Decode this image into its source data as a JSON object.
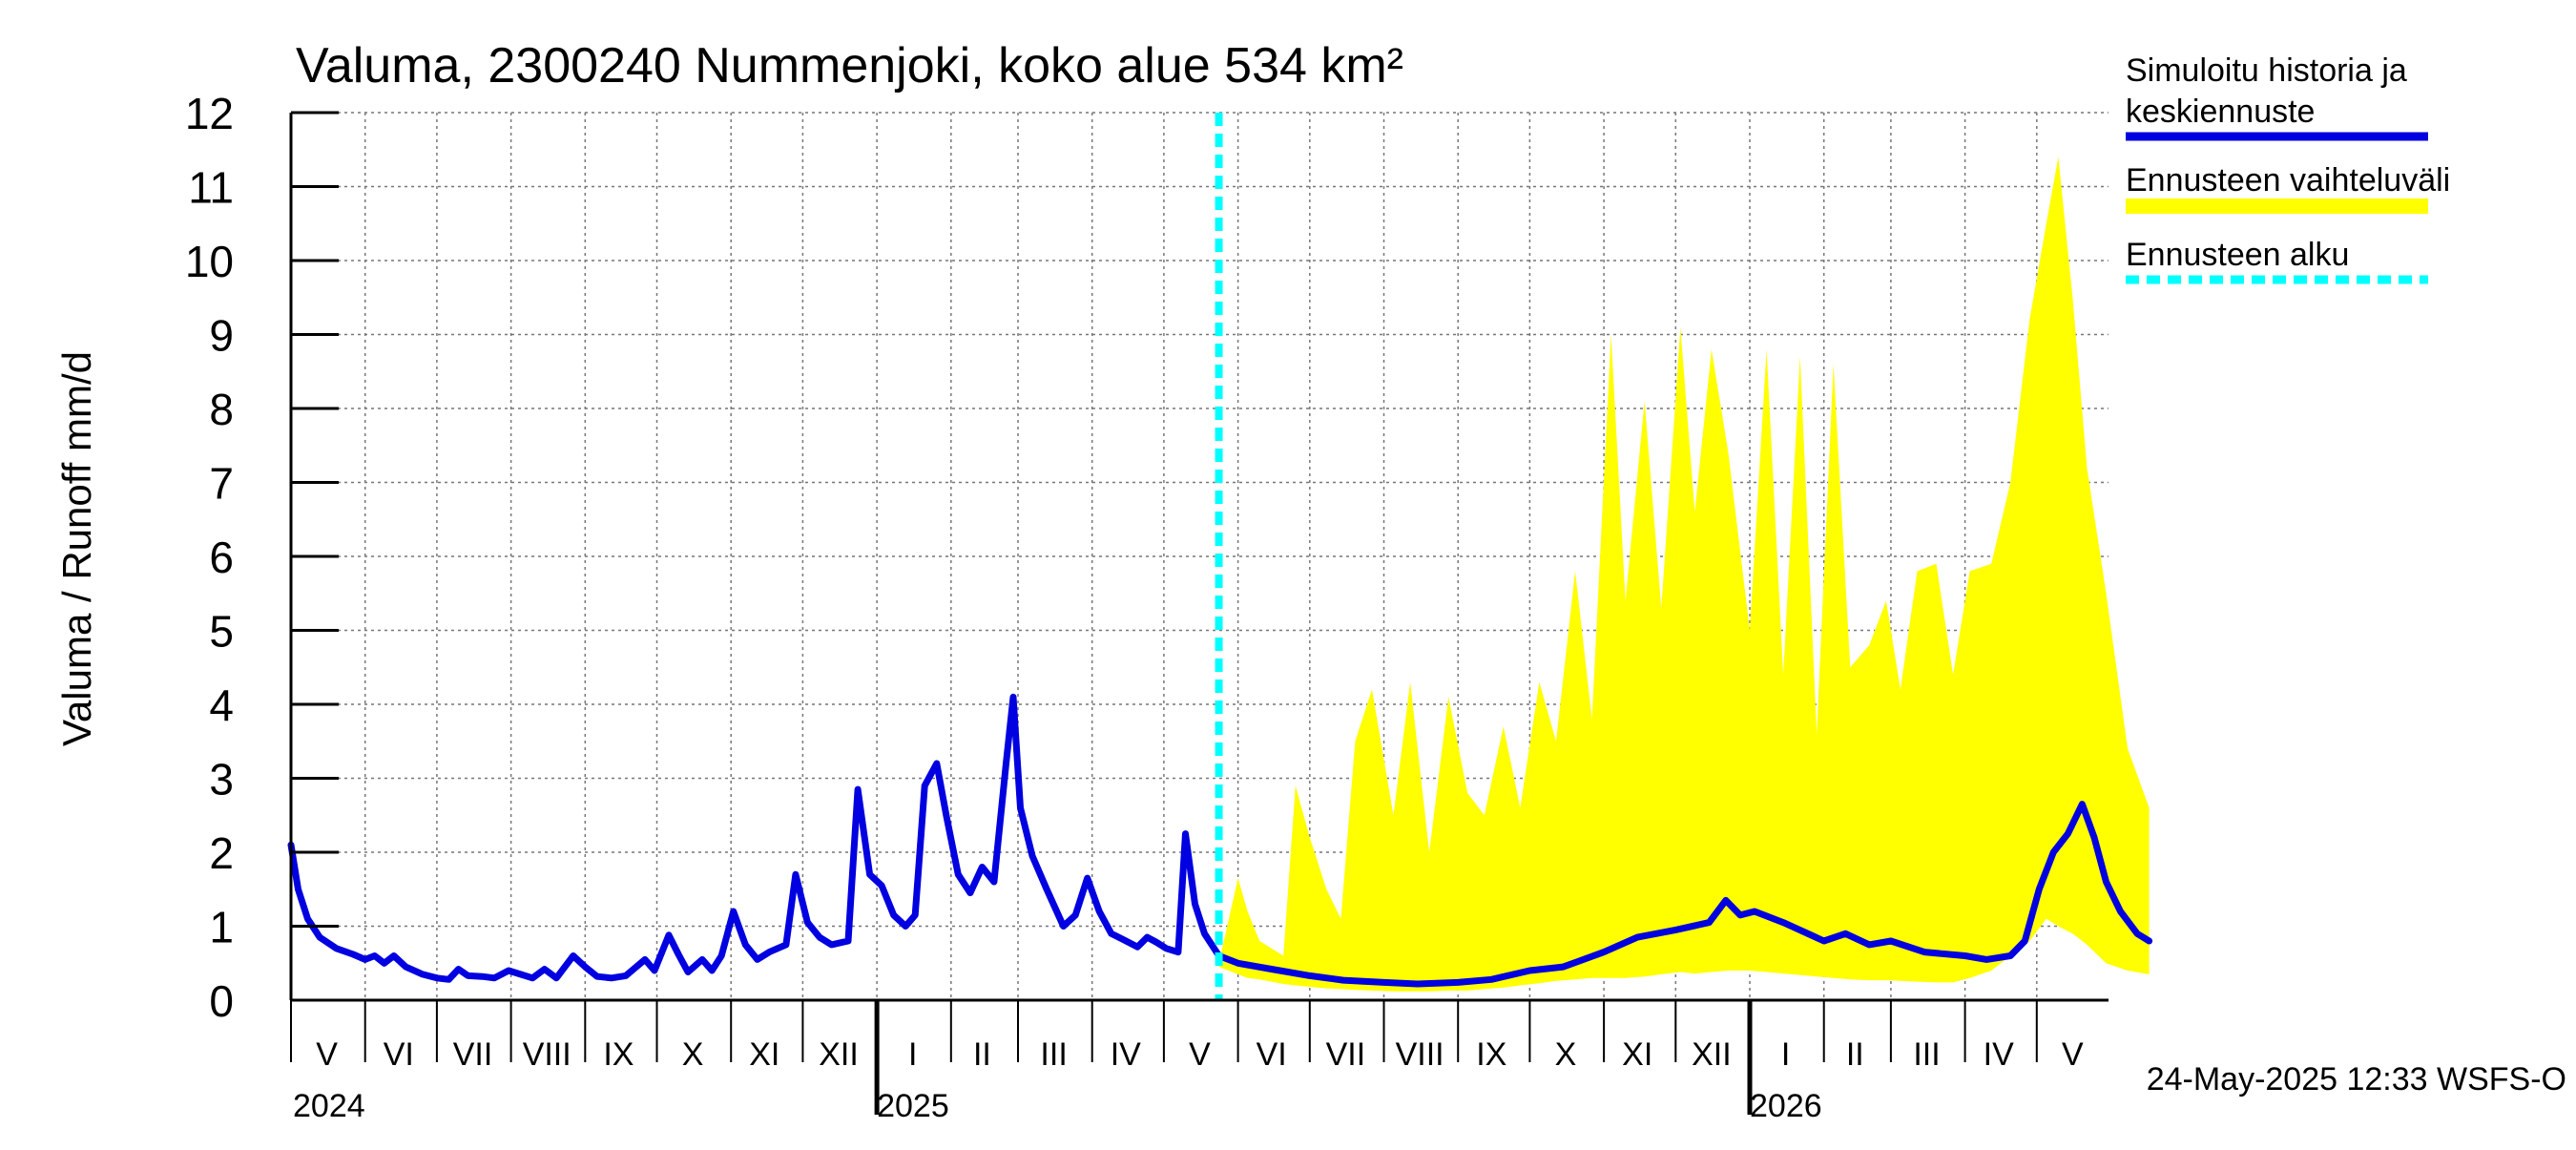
{
  "chart_data": {
    "type": "line",
    "title": "Valuma, 2300240 Nummenjoki, koko alue 534 km²",
    "ylabel": "Valuma / Runoff    mm/d",
    "ylim": [
      0,
      12
    ],
    "yticks": [
      0,
      1,
      2,
      3,
      4,
      5,
      6,
      7,
      8,
      9,
      10,
      11,
      12
    ],
    "xlim": [
      "2024-05-01",
      "2026-05-31"
    ],
    "x_month_labels": [
      {
        "label": "V",
        "date": "2024-05-16"
      },
      {
        "label": "VI",
        "date": "2024-06-15"
      },
      {
        "label": "VII",
        "date": "2024-07-16"
      },
      {
        "label": "VIII",
        "date": "2024-08-16"
      },
      {
        "label": "IX",
        "date": "2024-09-15"
      },
      {
        "label": "X",
        "date": "2024-10-16"
      },
      {
        "label": "XI",
        "date": "2024-11-15"
      },
      {
        "label": "XII",
        "date": "2024-12-16"
      },
      {
        "label": "I",
        "date": "2025-01-16"
      },
      {
        "label": "II",
        "date": "2025-02-14"
      },
      {
        "label": "III",
        "date": "2025-03-16"
      },
      {
        "label": "IV",
        "date": "2025-04-15"
      },
      {
        "label": "V",
        "date": "2025-05-16"
      },
      {
        "label": "VI",
        "date": "2025-06-15"
      },
      {
        "label": "VII",
        "date": "2025-07-16"
      },
      {
        "label": "VIII",
        "date": "2025-08-16"
      },
      {
        "label": "IX",
        "date": "2025-09-15"
      },
      {
        "label": "X",
        "date": "2025-10-16"
      },
      {
        "label": "XI",
        "date": "2025-11-15"
      },
      {
        "label": "XII",
        "date": "2025-12-16"
      },
      {
        "label": "I",
        "date": "2026-01-16"
      },
      {
        "label": "II",
        "date": "2026-02-14"
      },
      {
        "label": "III",
        "date": "2026-03-16"
      },
      {
        "label": "IV",
        "date": "2026-04-15"
      },
      {
        "label": "V",
        "date": "2026-05-16"
      }
    ],
    "x_year_labels": [
      {
        "label": "2024",
        "date": "2024-05-01"
      },
      {
        "label": "2025",
        "date": "2025-01-01"
      },
      {
        "label": "2026",
        "date": "2026-01-01"
      }
    ],
    "forecast_start": "2025-05-24",
    "grid": true,
    "legend_position": "right",
    "legend": [
      {
        "label_line1": "Simuloitu historia ja",
        "label_line2": "keskiennuste",
        "color": "#0000e0",
        "style": "solid-thick"
      },
      {
        "label_line1": "Ennusteen vaihteluväli",
        "label_line2": "",
        "color": "#ffff00",
        "style": "band"
      },
      {
        "label_line1": "Ennusteen alku",
        "label_line2": "",
        "color": "#00ffff",
        "style": "dashed"
      }
    ],
    "series": [
      {
        "name": "Simuloitu historia ja keskiennuste",
        "color": "#0000e0",
        "points": [
          [
            "2024-05-01",
            2.1
          ],
          [
            "2024-05-04",
            1.5
          ],
          [
            "2024-05-08",
            1.1
          ],
          [
            "2024-05-13",
            0.85
          ],
          [
            "2024-05-20",
            0.7
          ],
          [
            "2024-05-27",
            0.62
          ],
          [
            "2024-06-01",
            0.55
          ],
          [
            "2024-06-05",
            0.6
          ],
          [
            "2024-06-09",
            0.5
          ],
          [
            "2024-06-13",
            0.6
          ],
          [
            "2024-06-18",
            0.45
          ],
          [
            "2024-06-25",
            0.35
          ],
          [
            "2024-07-01",
            0.3
          ],
          [
            "2024-07-06",
            0.28
          ],
          [
            "2024-07-10",
            0.42
          ],
          [
            "2024-07-14",
            0.33
          ],
          [
            "2024-07-20",
            0.32
          ],
          [
            "2024-07-25",
            0.3
          ],
          [
            "2024-07-31",
            0.4
          ],
          [
            "2024-08-05",
            0.35
          ],
          [
            "2024-08-10",
            0.3
          ],
          [
            "2024-08-15",
            0.42
          ],
          [
            "2024-08-20",
            0.3
          ],
          [
            "2024-08-27",
            0.6
          ],
          [
            "2024-09-01",
            0.45
          ],
          [
            "2024-09-06",
            0.32
          ],
          [
            "2024-09-12",
            0.3
          ],
          [
            "2024-09-18",
            0.33
          ],
          [
            "2024-09-26",
            0.55
          ],
          [
            "2024-09-30",
            0.4
          ],
          [
            "2024-10-06",
            0.88
          ],
          [
            "2024-10-10",
            0.62
          ],
          [
            "2024-10-14",
            0.38
          ],
          [
            "2024-10-20",
            0.55
          ],
          [
            "2024-10-24",
            0.4
          ],
          [
            "2024-10-28",
            0.6
          ],
          [
            "2024-11-02",
            1.2
          ],
          [
            "2024-11-07",
            0.75
          ],
          [
            "2024-11-12",
            0.55
          ],
          [
            "2024-11-17",
            0.65
          ],
          [
            "2024-11-24",
            0.75
          ],
          [
            "2024-11-28",
            1.7
          ],
          [
            "2024-12-03",
            1.05
          ],
          [
            "2024-12-08",
            0.85
          ],
          [
            "2024-12-13",
            0.75
          ],
          [
            "2024-12-20",
            0.8
          ],
          [
            "2024-12-24",
            2.85
          ],
          [
            "2024-12-29",
            1.7
          ],
          [
            "2025-01-03",
            1.55
          ],
          [
            "2025-01-08",
            1.15
          ],
          [
            "2025-01-13",
            1.0
          ],
          [
            "2025-01-17",
            1.15
          ],
          [
            "2025-01-21",
            2.9
          ],
          [
            "2025-01-26",
            3.2
          ],
          [
            "2025-01-30",
            2.5
          ],
          [
            "2025-02-04",
            1.7
          ],
          [
            "2025-02-09",
            1.45
          ],
          [
            "2025-02-14",
            1.8
          ],
          [
            "2025-02-19",
            1.6
          ],
          [
            "2025-02-24",
            3.2
          ],
          [
            "2025-02-27",
            4.1
          ],
          [
            "2025-03-02",
            2.6
          ],
          [
            "2025-03-07",
            1.95
          ],
          [
            "2025-03-13",
            1.5
          ],
          [
            "2025-03-20",
            1.0
          ],
          [
            "2025-03-25",
            1.15
          ],
          [
            "2025-03-30",
            1.65
          ],
          [
            "2025-04-04",
            1.2
          ],
          [
            "2025-04-09",
            0.9
          ],
          [
            "2025-04-14",
            0.82
          ],
          [
            "2025-04-20",
            0.72
          ],
          [
            "2025-04-24",
            0.85
          ],
          [
            "2025-04-28",
            0.78
          ],
          [
            "2025-05-02",
            0.7
          ],
          [
            "2025-05-07",
            0.65
          ],
          [
            "2025-05-10",
            2.25
          ],
          [
            "2025-05-14",
            1.3
          ],
          [
            "2025-05-18",
            0.9
          ],
          [
            "2025-05-24",
            0.6
          ],
          [
            "2025-06-01",
            0.5
          ],
          [
            "2025-06-15",
            0.42
          ],
          [
            "2025-07-01",
            0.33
          ],
          [
            "2025-07-15",
            0.27
          ],
          [
            "2025-08-01",
            0.24
          ],
          [
            "2025-08-15",
            0.22
          ],
          [
            "2025-09-01",
            0.24
          ],
          [
            "2025-09-15",
            0.28
          ],
          [
            "2025-10-01",
            0.4
          ],
          [
            "2025-10-15",
            0.45
          ],
          [
            "2025-11-01",
            0.65
          ],
          [
            "2025-11-15",
            0.85
          ],
          [
            "2025-12-01",
            0.95
          ],
          [
            "2025-12-15",
            1.05
          ],
          [
            "2025-12-22",
            1.35
          ],
          [
            "2025-12-28",
            1.15
          ],
          [
            "2026-01-03",
            1.2
          ],
          [
            "2026-01-15",
            1.05
          ],
          [
            "2026-02-01",
            0.8
          ],
          [
            "2026-02-10",
            0.9
          ],
          [
            "2026-02-20",
            0.75
          ],
          [
            "2026-03-01",
            0.8
          ],
          [
            "2026-03-15",
            0.65
          ],
          [
            "2026-04-01",
            0.6
          ],
          [
            "2026-04-10",
            0.55
          ],
          [
            "2026-04-20",
            0.6
          ],
          [
            "2026-04-26",
            0.8
          ],
          [
            "2026-05-02",
            1.5
          ],
          [
            "2026-05-08",
            2.0
          ],
          [
            "2026-05-14",
            2.25
          ],
          [
            "2026-05-20",
            2.65
          ],
          [
            "2026-05-25",
            2.2
          ],
          [
            "2026-05-30",
            1.6
          ],
          [
            "2026-06-05",
            1.2
          ],
          [
            "2026-06-12",
            0.9
          ],
          [
            "2026-06-17",
            0.8
          ]
        ]
      }
    ],
    "forecast_band": {
      "name": "Ennusteen vaihteluväli",
      "color": "#ffff00",
      "points": [
        [
          "2025-05-24",
          0.45,
          0.5
        ],
        [
          "2025-06-01",
          0.35,
          1.65
        ],
        [
          "2025-06-05",
          0.3,
          1.2
        ],
        [
          "2025-06-10",
          0.28,
          0.8
        ],
        [
          "2025-06-20",
          0.22,
          0.6
        ],
        [
          "2025-06-25",
          0.2,
          2.9
        ],
        [
          "2025-07-01",
          0.18,
          2.2
        ],
        [
          "2025-07-08",
          0.16,
          1.5
        ],
        [
          "2025-07-14",
          0.15,
          1.1
        ],
        [
          "2025-07-20",
          0.14,
          3.5
        ],
        [
          "2025-07-27",
          0.13,
          4.2
        ],
        [
          "2025-08-05",
          0.12,
          2.5
        ],
        [
          "2025-08-12",
          0.12,
          4.3
        ],
        [
          "2025-08-20",
          0.12,
          2.0
        ],
        [
          "2025-08-28",
          0.13,
          4.1
        ],
        [
          "2025-09-05",
          0.13,
          2.8
        ],
        [
          "2025-09-12",
          0.15,
          2.5
        ],
        [
          "2025-09-20",
          0.17,
          3.7
        ],
        [
          "2025-09-27",
          0.2,
          2.6
        ],
        [
          "2025-10-05",
          0.23,
          4.3
        ],
        [
          "2025-10-12",
          0.26,
          3.5
        ],
        [
          "2025-10-20",
          0.28,
          5.8
        ],
        [
          "2025-10-27",
          0.3,
          3.8
        ],
        [
          "2025-11-04",
          0.3,
          9.0
        ],
        [
          "2025-11-10",
          0.3,
          5.4
        ],
        [
          "2025-11-18",
          0.32,
          8.1
        ],
        [
          "2025-11-25",
          0.35,
          5.3
        ],
        [
          "2025-12-03",
          0.38,
          9.1
        ],
        [
          "2025-12-09",
          0.36,
          6.6
        ],
        [
          "2025-12-16",
          0.38,
          8.8
        ],
        [
          "2025-12-23",
          0.4,
          7.4
        ],
        [
          "2026-01-01",
          0.4,
          5.0
        ],
        [
          "2026-01-08",
          0.38,
          8.8
        ],
        [
          "2026-01-15",
          0.36,
          4.4
        ],
        [
          "2026-01-22",
          0.34,
          8.7
        ],
        [
          "2026-01-29",
          0.32,
          3.6
        ],
        [
          "2026-02-05",
          0.3,
          8.6
        ],
        [
          "2026-02-12",
          0.28,
          4.5
        ],
        [
          "2026-02-20",
          0.27,
          4.8
        ],
        [
          "2026-02-27",
          0.27,
          5.4
        ],
        [
          "2026-03-05",
          0.26,
          4.2
        ],
        [
          "2026-03-12",
          0.25,
          5.8
        ],
        [
          "2026-03-20",
          0.24,
          5.9
        ],
        [
          "2026-03-27",
          0.24,
          4.4
        ],
        [
          "2026-04-03",
          0.3,
          5.8
        ],
        [
          "2026-04-12",
          0.4,
          5.9
        ],
        [
          "2026-04-20",
          0.6,
          7.0
        ],
        [
          "2026-04-28",
          0.8,
          9.2
        ],
        [
          "2026-05-05",
          1.1,
          10.5
        ],
        [
          "2026-05-10",
          1.0,
          11.4
        ],
        [
          "2026-05-16",
          0.9,
          9.5
        ],
        [
          "2026-05-22",
          0.75,
          7.2
        ],
        [
          "2026-05-30",
          0.5,
          5.5
        ],
        [
          "2026-06-08",
          0.4,
          3.4
        ],
        [
          "2026-06-17",
          0.35,
          2.6
        ]
      ]
    },
    "footer_timestamp": "24-May-2025 12:33 WSFS-O"
  }
}
